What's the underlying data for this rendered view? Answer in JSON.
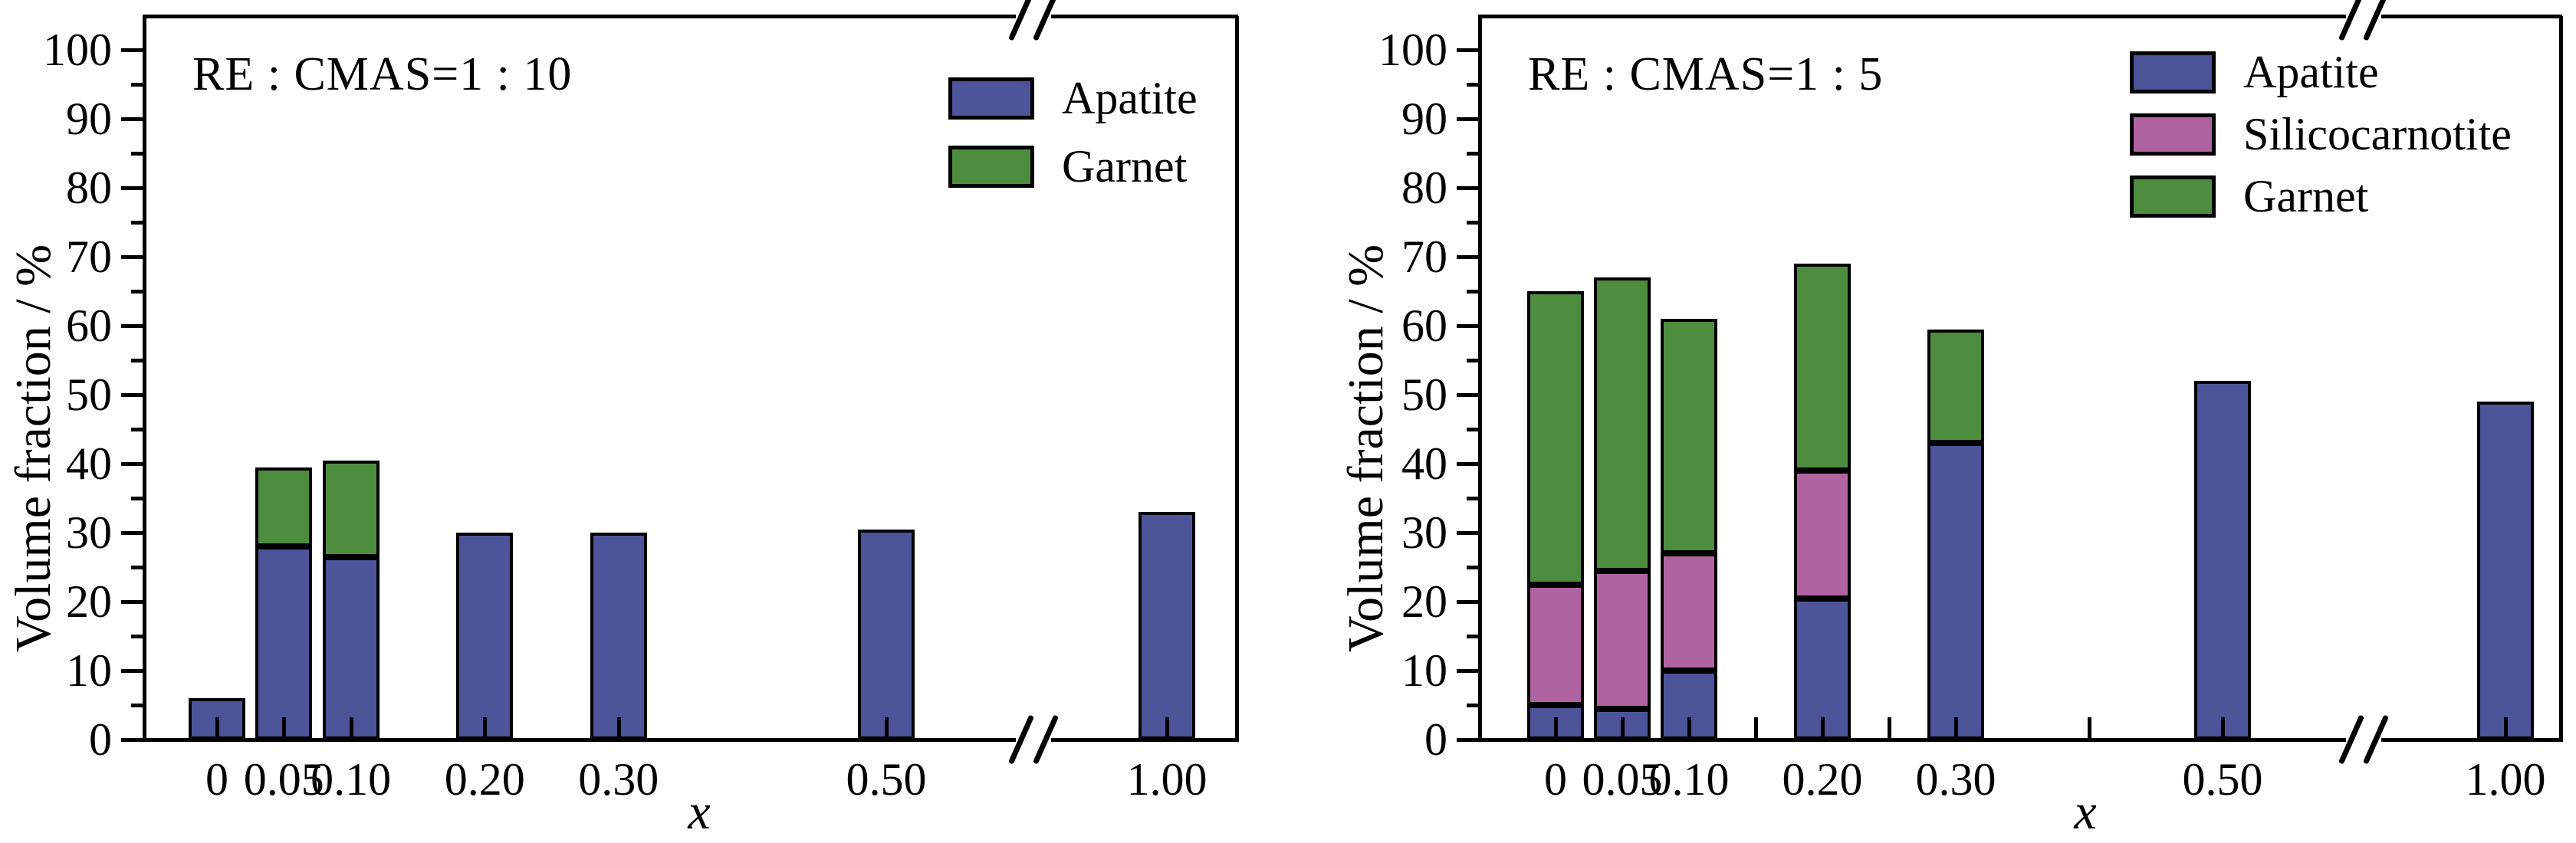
{
  "figure": {
    "background": "#ffffff",
    "axis_color": "#000000"
  },
  "charts": [
    {
      "title": "RE : CMAS=1 : 10",
      "ylabel": "Volume fraction / %",
      "xlabel": "x",
      "chart_data": {
        "type": "bar",
        "stacked": true,
        "title": "RE : CMAS=1 : 10",
        "xlabel": "x",
        "ylabel": "Volume fraction / %",
        "ylim": [
          0,
          100
        ],
        "y_major_tick_step": 10,
        "y_minor_tick_step": 5,
        "grid": false,
        "legend_position": "top-right",
        "categories": [
          "0",
          "0.05",
          "0.10",
          "0.20",
          "0.30",
          "0.50",
          "1.00"
        ],
        "category_values": [
          0,
          0.05,
          0.1,
          0.2,
          0.3,
          0.5,
          1.0
        ],
        "x_axis_break_between": [
          0.5,
          1.0
        ],
        "unlabeled_x_ticks": [],
        "series": [
          {
            "name": "Apatite",
            "color": "#4d5499",
            "values": [
              6,
              28,
              26.5,
              30,
              30,
              30.5,
              33
            ]
          },
          {
            "name": "Garnet",
            "color": "#4e8c3e",
            "values": [
              0,
              11.5,
              14,
              0,
              0,
              0,
              0
            ]
          }
        ]
      }
    },
    {
      "title": "RE : CMAS=1 : 5",
      "ylabel": "Volume fraction / %",
      "xlabel": "x",
      "chart_data": {
        "type": "bar",
        "stacked": true,
        "title": "RE : CMAS=1 : 5",
        "xlabel": "x",
        "ylabel": "Volume fraction / %",
        "ylim": [
          0,
          100
        ],
        "y_major_tick_step": 10,
        "y_minor_tick_step": 5,
        "grid": false,
        "legend_position": "top-right",
        "categories": [
          "0",
          "0.05",
          "0.10",
          "0.20",
          "0.30",
          "0.50",
          "1.00"
        ],
        "category_values": [
          0,
          0.05,
          0.1,
          0.2,
          0.3,
          0.5,
          1.0
        ],
        "x_axis_break_between": [
          0.5,
          1.0
        ],
        "unlabeled_x_ticks": [
          0.15,
          0.25,
          0.4
        ],
        "series": [
          {
            "name": "Apatite",
            "color": "#4d5499",
            "values": [
              5,
              4.5,
              10,
              20.5,
              43,
              52,
              49
            ]
          },
          {
            "name": "Silicocarnotite",
            "color": "#af64a1",
            "values": [
              17.5,
              20,
              17,
              18.5,
              0,
              0,
              0
            ]
          },
          {
            "name": "Garnet",
            "color": "#4e8c3e",
            "values": [
              42.5,
              42.5,
              34,
              30,
              16.5,
              0,
              0
            ]
          }
        ]
      }
    }
  ]
}
